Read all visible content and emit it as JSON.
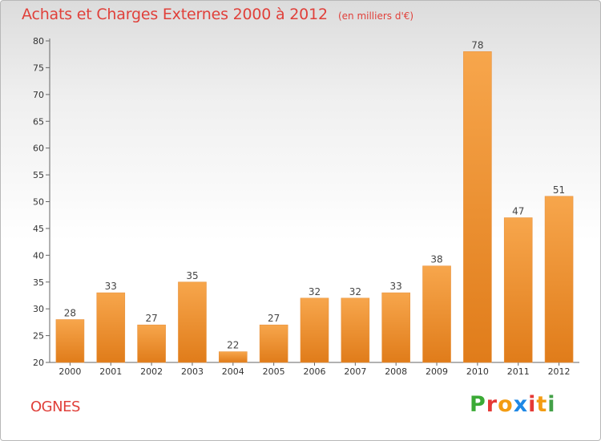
{
  "header": {
    "title": "Achats et Charges Externes 2000 à 2012",
    "subtitle": "(en milliers d'€)"
  },
  "footer": {
    "commune": "OGNES",
    "logo": "Proxiti",
    "logo_colors": [
      "#3aaa35",
      "#e53935",
      "#f39c12",
      "#1e88e5",
      "#e53935",
      "#f39c12",
      "#43a047"
    ]
  },
  "colors": {
    "bar_light": "#f7a64c",
    "bar_dark": "#e07c1a",
    "title": "#e0403a"
  },
  "chart_data": {
    "type": "bar",
    "title": "Achats et Charges Externes 2000 à 2012",
    "subtitle": "(en milliers d'€)",
    "categories": [
      "2000",
      "2001",
      "2002",
      "2003",
      "2004",
      "2005",
      "2006",
      "2007",
      "2008",
      "2009",
      "2010",
      "2011",
      "2012"
    ],
    "values": [
      28,
      33,
      27,
      35,
      22,
      27,
      32,
      32,
      33,
      38,
      78,
      47,
      51
    ],
    "ylim": [
      20,
      80
    ],
    "yticks": [
      20,
      25,
      30,
      35,
      40,
      45,
      50,
      55,
      60,
      65,
      70,
      75,
      80
    ],
    "grid": false,
    "data_labels": true
  }
}
